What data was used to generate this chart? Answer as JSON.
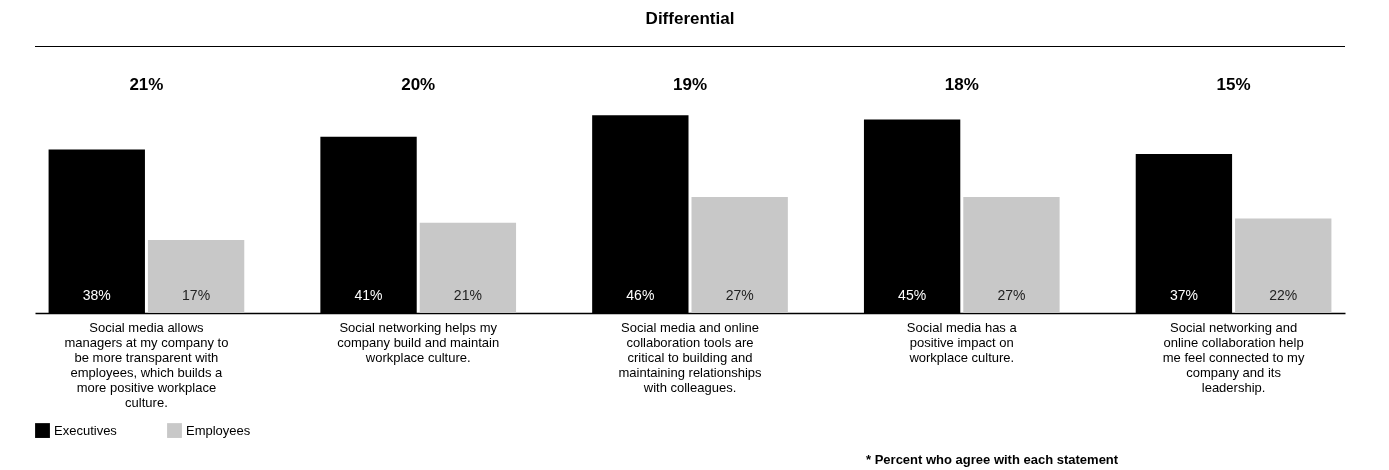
{
  "chart_data": {
    "type": "bar",
    "title": "Differential",
    "categories": [
      "Social media allows managers at my company to be more transparent with employees, which builds a more positive workplace culture.",
      "Social networking helps my company build and maintain workplace culture.",
      "Social media and online collaboration tools are critical to building and maintaining relationships with colleagues.",
      "Social media has a positive impact on workplace culture.",
      "Social networking and online collaboration help me feel connected to my company and its leadership."
    ],
    "series": [
      {
        "name": "Executives",
        "color": "#000000",
        "values": [
          38,
          41,
          46,
          45,
          37
        ],
        "value_labels": [
          "38%",
          "41%",
          "46%",
          "45%",
          "37%"
        ]
      },
      {
        "name": "Employees",
        "color": "#c8c8c8",
        "values": [
          17,
          21,
          27,
          27,
          22
        ],
        "value_labels": [
          "17%",
          "21%",
          "27%",
          "27%",
          "22%"
        ]
      }
    ],
    "grid": false,
    "legend": "bottom",
    "annotations": [
      "21%",
      "20%",
      "19%",
      "18%",
      "15%",
      "* Percent who agree with each statement"
    ]
  }
}
